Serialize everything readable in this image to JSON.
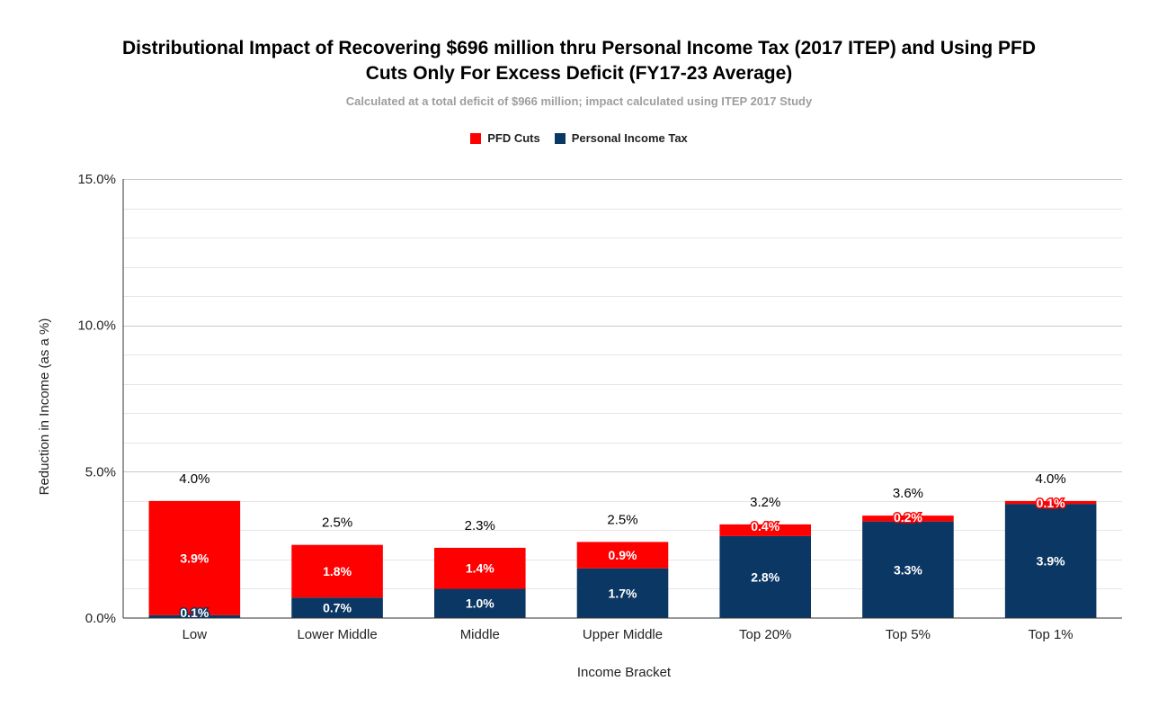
{
  "chart_data": {
    "type": "bar",
    "stacked": true,
    "title_lines": [
      "Distributional Impact of Recovering $696 million thru Personal Income Tax (2017 ITEP) and Using PFD",
      "Cuts Only For Excess Deficit (FY17-23 Average)"
    ],
    "subtitle": "Calculated at a total deficit of $966 million; impact calculated using ITEP 2017 Study",
    "xlabel": "Income Bracket",
    "ylabel": "Reduction in Income (as a %)",
    "ylim": [
      0,
      15
    ],
    "yticks": [
      0,
      5,
      10,
      15
    ],
    "ytick_labels": [
      "0.0%",
      "5.0%",
      "10.0%",
      "15.0%"
    ],
    "minor_gridlines_per_major": 5,
    "grid": true,
    "legend_position": "top",
    "categories": [
      "Low",
      "Lower Middle",
      "Middle",
      "Upper Middle",
      "Top 20%",
      "Top 5%",
      "Top 1%"
    ],
    "series": [
      {
        "name": "Personal Income Tax",
        "color": "#0b3764",
        "values": [
          0.1,
          0.7,
          1.0,
          1.7,
          2.8,
          3.3,
          3.9
        ],
        "labels": [
          "0.1%",
          "0.7%",
          "1.0%",
          "1.7%",
          "2.8%",
          "3.3%",
          "3.9%"
        ]
      },
      {
        "name": "PFD Cuts",
        "color": "#ff0000",
        "values": [
          3.9,
          1.8,
          1.4,
          0.9,
          0.4,
          0.2,
          0.1
        ],
        "labels": [
          "3.9%",
          "1.8%",
          "1.4%",
          "0.9%",
          "0.4%",
          "0.2%",
          "0.1%"
        ]
      }
    ],
    "totals": [
      4.0,
      2.5,
      2.3,
      2.5,
      3.2,
      3.6,
      4.0
    ],
    "total_labels": [
      "4.0%",
      "2.5%",
      "2.3%",
      "2.5%",
      "3.2%",
      "3.6%",
      "4.0%"
    ],
    "legend_order": [
      "PFD Cuts",
      "Personal Income Tax"
    ]
  }
}
